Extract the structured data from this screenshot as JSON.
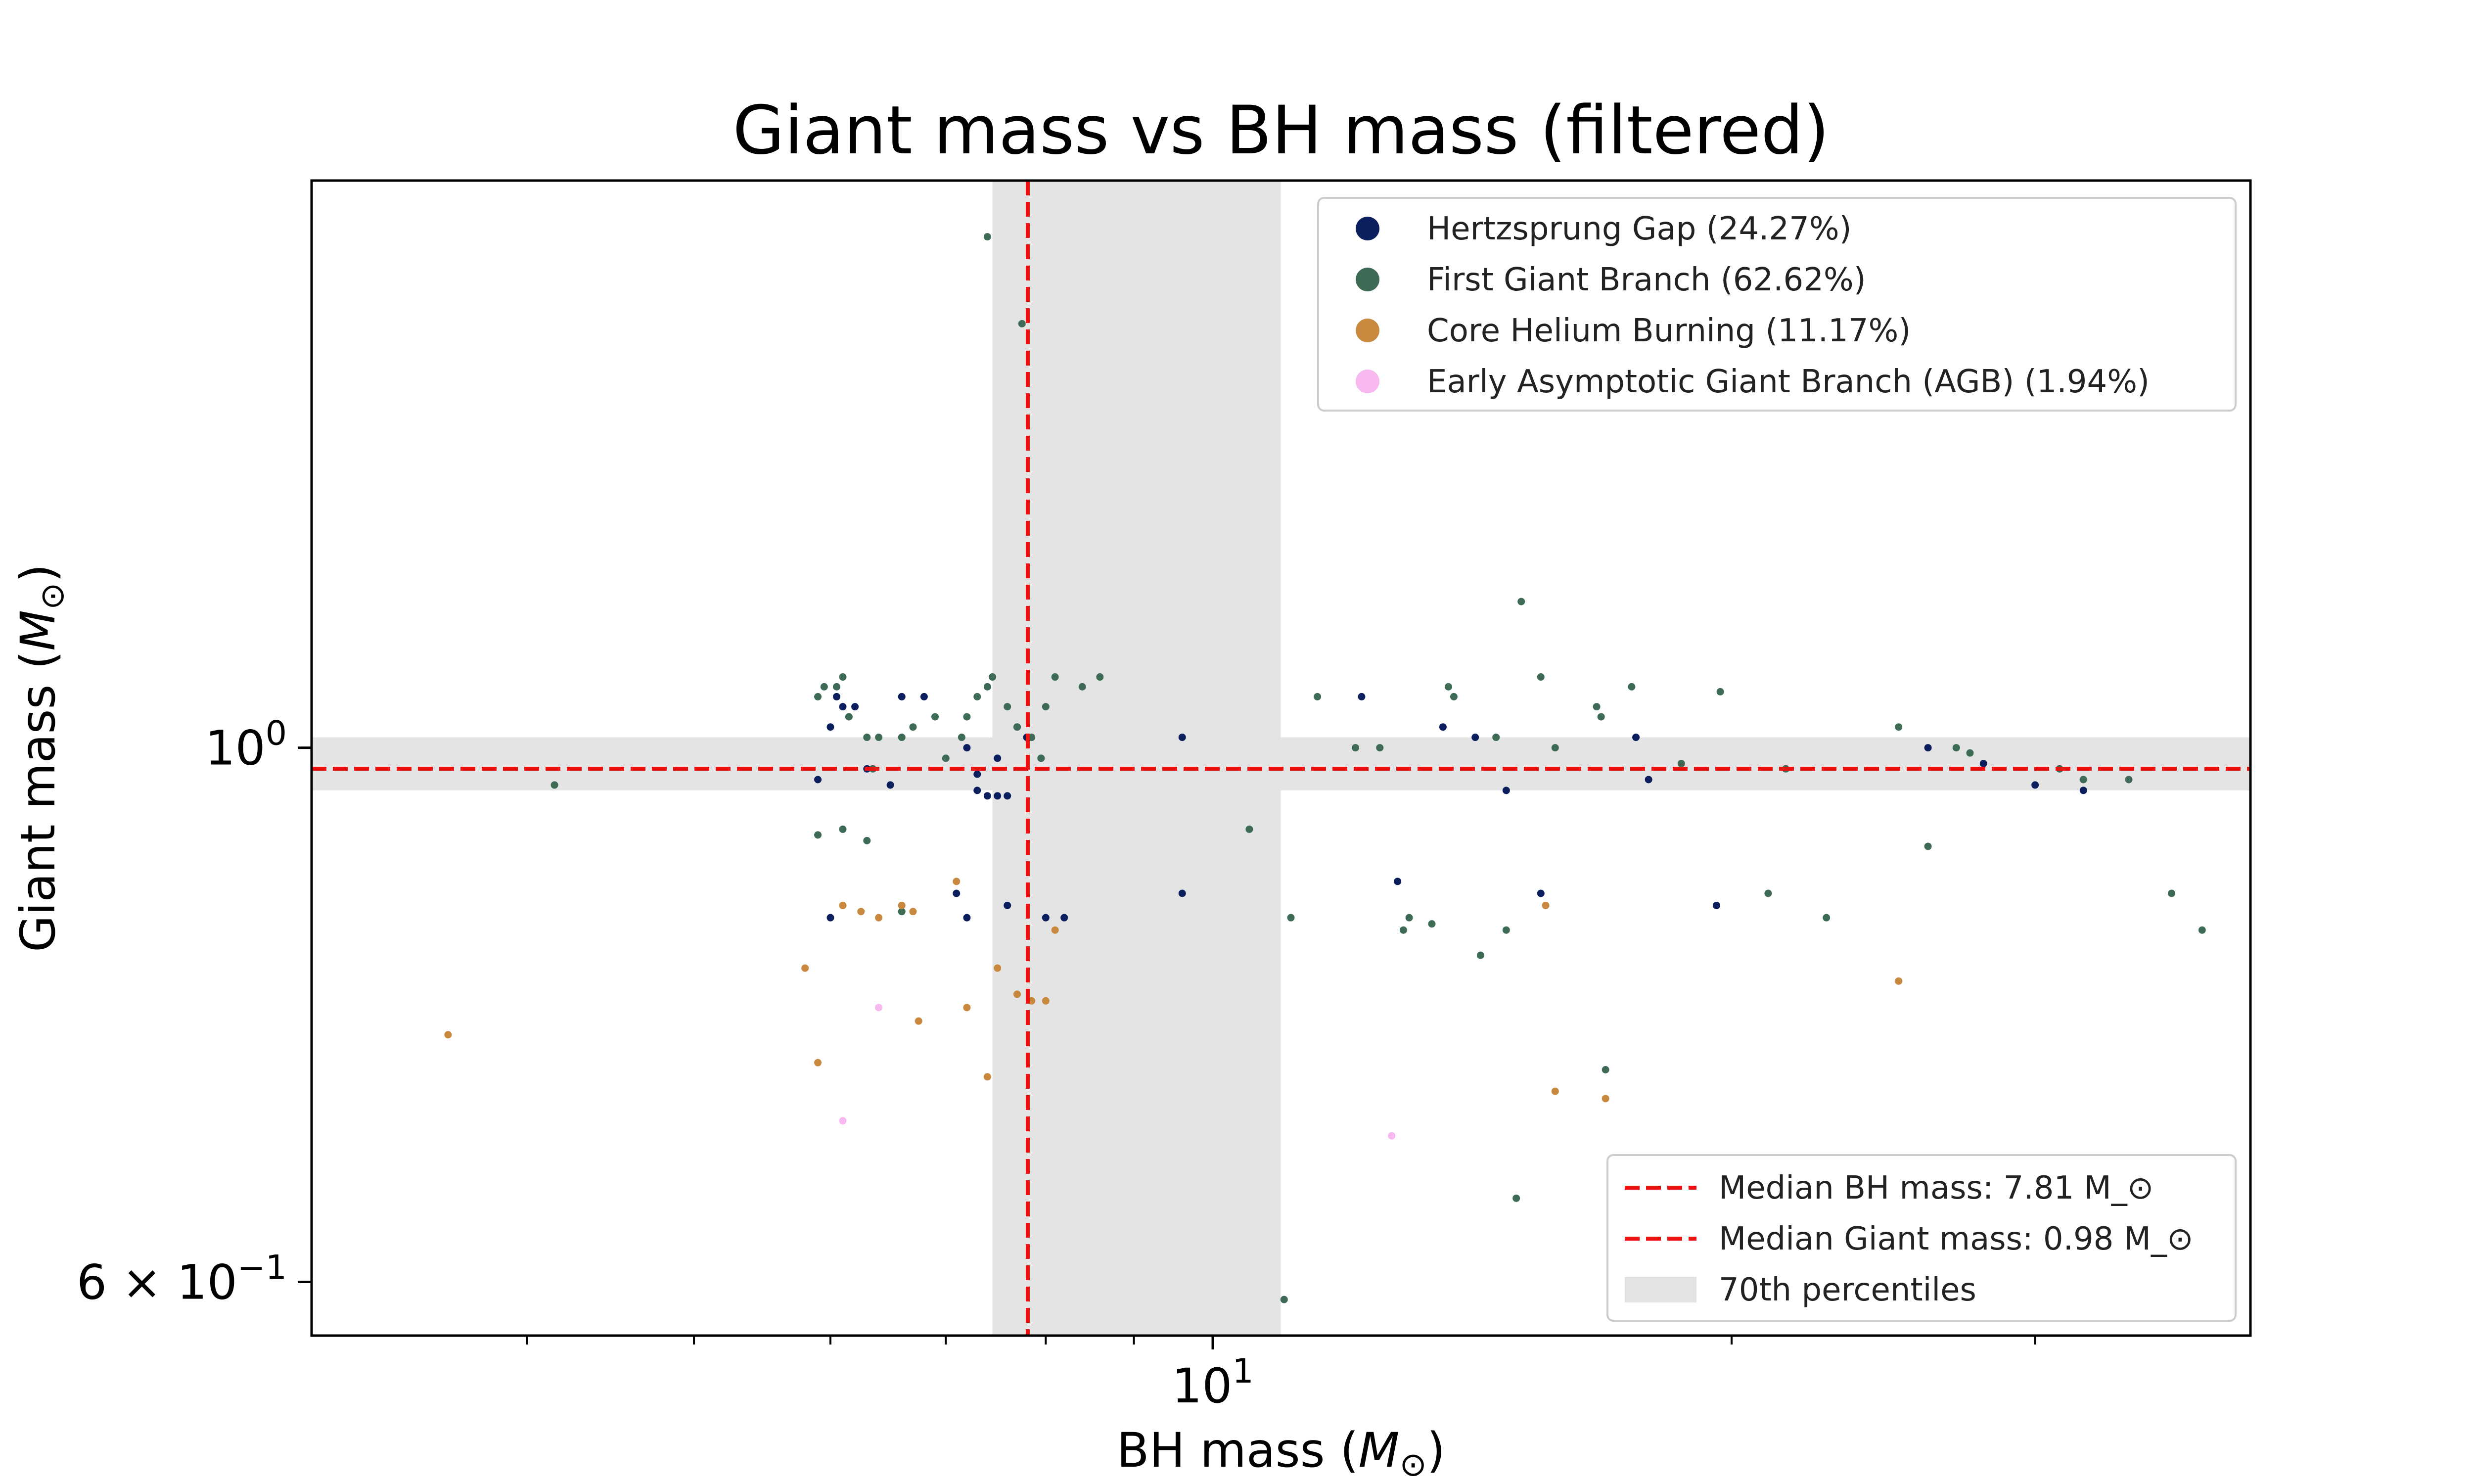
{
  "chart_data": {
    "type": "scatter",
    "title": "Giant mass vs BH mass (filtered)",
    "xlabel": "BH mass (M_⊙)",
    "ylabel": "Giant mass (M_⊙)",
    "x_scale": "log",
    "y_scale": "log",
    "xlim": [
      3.0,
      40.0
    ],
    "ylim": [
      0.57,
      1.72
    ],
    "x_major_ticks": [
      {
        "value": 10,
        "base": "10",
        "exp": "1"
      }
    ],
    "x_minor_ticks": [
      4,
      5,
      6,
      7,
      8,
      9,
      20,
      30
    ],
    "y_major_ticks": [
      {
        "value": 1.0,
        "mantissa": "",
        "base": "10",
        "exp": "0"
      },
      {
        "value": 0.6,
        "mantissa": "6 × ",
        "base": "10",
        "exp": "−1"
      }
    ],
    "grid": false,
    "legend_series_position": "upper right",
    "legend_lines_position": "lower right",
    "series": [
      {
        "name": "Hertzsprung Gap (24.27%)",
        "color": "#0b1f5e",
        "points": [
          [
            5.9,
            0.97
          ],
          [
            6.0,
            1.02
          ],
          [
            6.1,
            1.04
          ],
          [
            6.05,
            1.05
          ],
          [
            6.2,
            1.04
          ],
          [
            6.3,
            0.98
          ],
          [
            6.5,
            0.965
          ],
          [
            6.6,
            1.05
          ],
          [
            6.8,
            1.05
          ],
          [
            7.2,
            1.0
          ],
          [
            7.3,
            0.96
          ],
          [
            7.4,
            0.955
          ],
          [
            7.5,
            0.955
          ],
          [
            7.6,
            0.955
          ],
          [
            7.3,
            0.975
          ],
          [
            7.5,
            0.99
          ],
          [
            7.7,
            1.02
          ],
          [
            7.8,
            1.01
          ],
          [
            7.1,
            0.87
          ],
          [
            7.2,
            0.85
          ],
          [
            7.6,
            0.86
          ],
          [
            8.0,
            0.85
          ],
          [
            8.2,
            0.85
          ],
          [
            9.6,
            1.01
          ],
          [
            9.6,
            0.87
          ],
          [
            12.2,
            1.05
          ],
          [
            12.8,
            0.88
          ],
          [
            13.6,
            1.02
          ],
          [
            14.2,
            1.01
          ],
          [
            14.8,
            0.96
          ],
          [
            15.5,
            0.87
          ],
          [
            17.6,
            1.01
          ],
          [
            17.9,
            0.97
          ],
          [
            19.6,
            0.86
          ],
          [
            26.0,
            1.0
          ],
          [
            28.0,
            0.985
          ],
          [
            30.0,
            0.965
          ],
          [
            32.0,
            0.96
          ],
          [
            6.0,
            0.85
          ]
        ]
      },
      {
        "name": "First Giant Branch (62.62%)",
        "color": "#3d6b55",
        "points": [
          [
            4.15,
            0.965
          ],
          [
            5.9,
            1.05
          ],
          [
            5.95,
            1.06
          ],
          [
            6.05,
            1.06
          ],
          [
            6.1,
            1.07
          ],
          [
            6.15,
            1.03
          ],
          [
            6.3,
            1.01
          ],
          [
            6.35,
            0.98
          ],
          [
            6.4,
            1.01
          ],
          [
            6.6,
            1.01
          ],
          [
            6.7,
            1.02
          ],
          [
            6.9,
            1.03
          ],
          [
            7.0,
            0.99
          ],
          [
            7.15,
            1.01
          ],
          [
            7.2,
            1.03
          ],
          [
            7.3,
            1.05
          ],
          [
            7.4,
            1.06
          ],
          [
            7.45,
            1.07
          ],
          [
            7.6,
            1.04
          ],
          [
            7.7,
            1.02
          ],
          [
            7.85,
            1.01
          ],
          [
            7.95,
            0.99
          ],
          [
            8.0,
            1.04
          ],
          [
            8.1,
            1.07
          ],
          [
            8.4,
            1.06
          ],
          [
            8.6,
            1.07
          ],
          [
            7.4,
            1.63
          ],
          [
            7.75,
            1.5
          ],
          [
            5.9,
            0.92
          ],
          [
            6.1,
            0.925
          ],
          [
            6.3,
            0.915
          ],
          [
            6.6,
            0.855
          ],
          [
            10.5,
            0.925
          ],
          [
            11.1,
            0.85
          ],
          [
            11.5,
            1.05
          ],
          [
            12.1,
            1.0
          ],
          [
            12.5,
            1.0
          ],
          [
            12.9,
            0.84
          ],
          [
            13.0,
            0.85
          ],
          [
            13.4,
            0.845
          ],
          [
            13.7,
            1.06
          ],
          [
            13.8,
            1.05
          ],
          [
            14.3,
            0.82
          ],
          [
            14.6,
            1.01
          ],
          [
            14.8,
            0.84
          ],
          [
            15.1,
            1.15
          ],
          [
            15.5,
            1.07
          ],
          [
            15.8,
            1.0
          ],
          [
            16.7,
            1.04
          ],
          [
            16.8,
            1.03
          ],
          [
            16.9,
            0.735
          ],
          [
            17.5,
            1.06
          ],
          [
            18.7,
            0.985
          ],
          [
            19.7,
            1.055
          ],
          [
            21.0,
            0.87
          ],
          [
            21.5,
            0.98
          ],
          [
            22.7,
            0.85
          ],
          [
            25.0,
            1.02
          ],
          [
            26.0,
            0.91
          ],
          [
            27.0,
            1.0
          ],
          [
            27.5,
            0.995
          ],
          [
            31.0,
            0.98
          ],
          [
            32.0,
            0.97
          ],
          [
            34.0,
            0.97
          ],
          [
            36.0,
            0.87
          ],
          [
            37.5,
            0.84
          ],
          [
            15.0,
            0.65
          ],
          [
            11.0,
            0.59
          ]
        ]
      },
      {
        "name": "Core Helium Burning (11.17%)",
        "color": "#c8893e",
        "points": [
          [
            3.6,
            0.76
          ],
          [
            5.8,
            0.81
          ],
          [
            5.9,
            0.74
          ],
          [
            6.1,
            0.86
          ],
          [
            6.25,
            0.855
          ],
          [
            6.4,
            0.85
          ],
          [
            6.6,
            0.86
          ],
          [
            6.7,
            0.855
          ],
          [
            6.75,
            0.77
          ],
          [
            7.1,
            0.88
          ],
          [
            7.2,
            0.78
          ],
          [
            7.4,
            0.73
          ],
          [
            7.5,
            0.81
          ],
          [
            7.7,
            0.79
          ],
          [
            7.85,
            0.785
          ],
          [
            8.0,
            0.785
          ],
          [
            8.1,
            0.84
          ],
          [
            15.6,
            0.86
          ],
          [
            15.8,
            0.72
          ],
          [
            16.9,
            0.715
          ],
          [
            25.0,
            0.8
          ]
        ]
      },
      {
        "name": "Early Asymptotic Giant Branch (AGB) (1.94%)",
        "color": "#f7b9ef",
        "points": [
          [
            6.1,
            0.7
          ],
          [
            6.4,
            0.78
          ],
          [
            12.7,
            0.69
          ]
        ]
      }
    ],
    "median_lines": [
      {
        "label": "Median BH mass: 7.81 M_⊙",
        "axis": "x",
        "value": 7.81,
        "color": "#ee1111"
      },
      {
        "label": "Median Giant mass: 0.98 M_⊙",
        "axis": "y",
        "value": 0.98,
        "color": "#ee1111"
      }
    ],
    "percentile_bands": {
      "label": "70th percentiles",
      "color": "#e3e3e3",
      "x_range": [
        7.45,
        10.95
      ],
      "y_range": [
        0.96,
        1.01
      ]
    }
  }
}
